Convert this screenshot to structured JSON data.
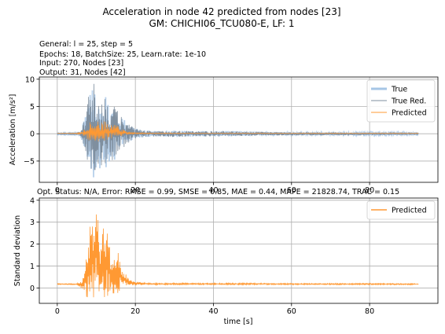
{
  "figure": {
    "title_line1": "Acceleration in node 42 predicted from nodes [23]",
    "title_line2": "GM: CHICHI06_TCU080-E, LF: 1",
    "info_lines": [
      "General: l = 25, step = 5",
      "Epochs: 18, BatchSize: 25, Learn.rate: 1e-10",
      "Input: 270, Nodes [23]",
      "Output: 31, Nodes [42]"
    ],
    "status_line": "Opt. Status: N/A, Error: RMSE = 0.99, SMSE = 0.85, MAE = 0.44, MAPE = 21828.74, TRAC = 0.15"
  },
  "colors": {
    "true": "#a6c6e6",
    "true_red": "#7f8f9f",
    "predicted": "#ff9933",
    "grid": "#b0b0b0"
  },
  "chart_data": [
    {
      "type": "line",
      "xlabel": "",
      "ylabel": "Acceleration [m/s²]",
      "xlim": [
        -4.6,
        97.5
      ],
      "ylim": [
        -8.9,
        10.4
      ],
      "xticks": [
        0,
        20,
        40,
        60,
        80
      ],
      "yticks": [
        -5,
        0,
        5,
        10
      ],
      "grid": true,
      "legend_position": "top-right",
      "series": [
        {
          "name": "True",
          "kind": "envelope",
          "color_key": "true",
          "x": [
            0,
            5,
            6,
            7,
            8,
            9,
            9.5,
            10,
            11,
            12,
            13,
            14,
            15,
            16,
            17,
            18,
            20,
            22,
            25,
            30,
            35,
            40,
            45,
            50,
            60,
            70,
            80,
            92.5
          ],
          "max": [
            0.1,
            0.15,
            0.6,
            3.5,
            7.0,
            8.0,
            9.5,
            6.5,
            6.0,
            8.0,
            5.5,
            5.0,
            5.0,
            3.5,
            2.8,
            2.0,
            1.0,
            0.6,
            0.5,
            0.6,
            0.5,
            0.5,
            0.5,
            0.4,
            0.3,
            0.25,
            0.2,
            0.15
          ],
          "min": [
            -0.1,
            -0.15,
            -0.6,
            -3.0,
            -6.0,
            -7.5,
            -9.0,
            -6.0,
            -6.5,
            -7.5,
            -5.0,
            -5.5,
            -4.5,
            -3.0,
            -2.5,
            -1.8,
            -0.9,
            -0.6,
            -0.5,
            -0.6,
            -0.5,
            -0.5,
            -0.45,
            -0.35,
            -0.3,
            -0.25,
            -0.2,
            -0.15
          ]
        },
        {
          "name": "True Red.",
          "kind": "envelope",
          "color_key": "true_red",
          "x": [
            0,
            5,
            6,
            7,
            8,
            9,
            9.5,
            10,
            11,
            12,
            13,
            14,
            15,
            16,
            17,
            18,
            20,
            22,
            25,
            30,
            35,
            40,
            45,
            50,
            60,
            70,
            80,
            92.5
          ],
          "max": [
            0.1,
            0.15,
            0.6,
            3.5,
            7.0,
            8.0,
            9.5,
            6.5,
            6.0,
            8.0,
            5.5,
            5.0,
            5.0,
            3.5,
            2.8,
            2.0,
            1.0,
            0.6,
            0.5,
            0.6,
            0.5,
            0.5,
            0.5,
            0.4,
            0.3,
            0.25,
            0.2,
            0.15
          ],
          "min": [
            -0.1,
            -0.15,
            -0.6,
            -3.0,
            -6.0,
            -7.5,
            -9.0,
            -6.0,
            -6.5,
            -7.5,
            -5.0,
            -5.5,
            -4.5,
            -3.0,
            -2.5,
            -1.8,
            -0.9,
            -0.6,
            -0.5,
            -0.6,
            -0.5,
            -0.5,
            -0.45,
            -0.35,
            -0.3,
            -0.25,
            -0.2,
            -0.15
          ]
        },
        {
          "name": "Predicted",
          "kind": "envelope",
          "color_key": "predicted",
          "x": [
            0,
            5,
            6,
            7,
            8,
            9,
            10,
            11,
            12,
            13,
            14,
            15,
            16,
            17,
            18,
            20,
            25,
            30,
            40,
            60,
            80,
            92.5
          ],
          "max": [
            0.1,
            0.15,
            0.3,
            0.8,
            2.0,
            2.5,
            3.0,
            2.0,
            2.5,
            2.0,
            1.5,
            1.8,
            1.0,
            0.7,
            0.4,
            0.2,
            0.15,
            0.12,
            0.1,
            0.1,
            0.1,
            0.1
          ],
          "min": [
            0.05,
            0.0,
            -0.2,
            -0.5,
            -1.2,
            -1.6,
            -1.8,
            -1.2,
            -1.5,
            -1.2,
            -0.8,
            -0.9,
            -0.5,
            -0.3,
            -0.2,
            -0.05,
            0.0,
            0.02,
            0.03,
            0.03,
            0.03,
            0.03
          ]
        }
      ]
    },
    {
      "type": "line",
      "xlabel": "time [s]",
      "ylabel": "Standard deviation",
      "xlim": [
        -4.6,
        97.5
      ],
      "ylim": [
        -0.7,
        4.1
      ],
      "xticks": [
        0,
        20,
        40,
        60,
        80
      ],
      "yticks": [
        0,
        1,
        2,
        3,
        4
      ],
      "grid": true,
      "legend_position": "top-right",
      "series": [
        {
          "name": "Predicted",
          "kind": "envelope",
          "color_key": "predicted",
          "x": [
            0,
            5,
            6,
            7,
            7.5,
            8,
            8.5,
            9,
            9.5,
            10,
            10.5,
            11,
            11.5,
            12,
            12.5,
            13,
            13.5,
            14,
            14.5,
            15,
            15.5,
            16,
            16.5,
            17,
            18,
            19,
            20,
            22,
            25,
            30,
            40,
            50,
            60,
            70,
            80,
            92.5
          ],
          "max": [
            0.2,
            0.2,
            0.3,
            0.8,
            1.5,
            2.5,
            3.0,
            3.4,
            3.6,
            4.0,
            3.1,
            2.2,
            2.7,
            3.0,
            2.7,
            2.5,
            1.8,
            1.6,
            1.8,
            1.6,
            2.0,
            1.3,
            1.0,
            0.8,
            0.5,
            0.35,
            0.3,
            0.25,
            0.22,
            0.22,
            0.22,
            0.22,
            0.21,
            0.21,
            0.21,
            0.2
          ],
          "min": [
            0.16,
            0.15,
            0.0,
            -0.2,
            -0.4,
            -0.5,
            -0.55,
            -0.6,
            -0.5,
            -0.65,
            -0.4,
            -0.3,
            -0.35,
            -0.5,
            -0.4,
            -0.4,
            -0.3,
            -0.2,
            -0.3,
            -0.2,
            -0.3,
            -0.1,
            0.0,
            0.05,
            0.1,
            0.12,
            0.12,
            0.14,
            0.15,
            0.15,
            0.15,
            0.15,
            0.15,
            0.15,
            0.15,
            0.15
          ]
        }
      ]
    }
  ]
}
